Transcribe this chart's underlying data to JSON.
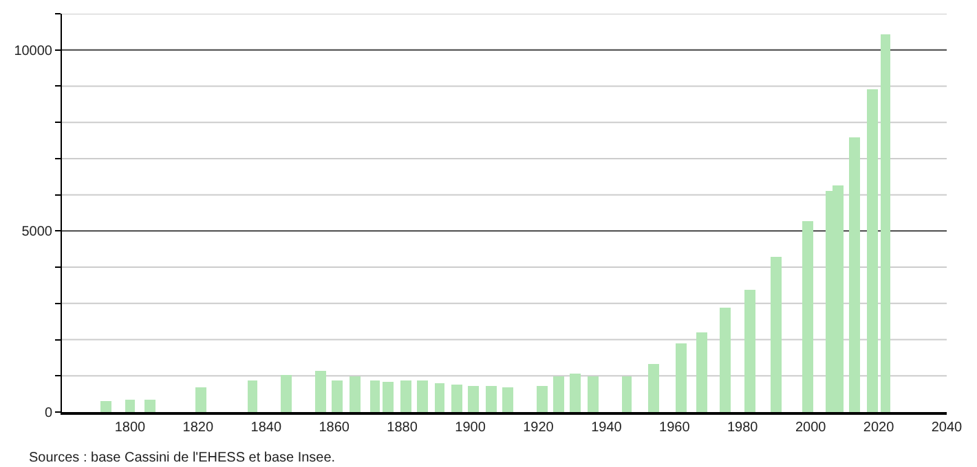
{
  "chart_data": {
    "type": "bar",
    "x": [
      1793,
      1800,
      1806,
      1821,
      1836,
      1846,
      1856,
      1861,
      1866,
      1872,
      1876,
      1881,
      1886,
      1891,
      1896,
      1901,
      1906,
      1911,
      1921,
      1926,
      1931,
      1936,
      1946,
      1954,
      1962,
      1968,
      1975,
      1982,
      1990,
      1999,
      2006,
      2008,
      2013,
      2018,
      2022
    ],
    "values": [
      320,
      340,
      340,
      700,
      890,
      1040,
      1140,
      890,
      990,
      890,
      850,
      890,
      890,
      800,
      760,
      720,
      720,
      670,
      720,
      980,
      1080,
      980,
      980,
      1330,
      1900,
      2210,
      2890,
      3380,
      4300,
      5290,
      6120,
      6270,
      7570,
      8900,
      10420
    ],
    "color": "#b3e6b5",
    "xlim": [
      1780,
      2040
    ],
    "xticks": [
      1800,
      1820,
      1840,
      1860,
      1880,
      1900,
      1920,
      1940,
      1960,
      1980,
      2000,
      2020,
      2040
    ],
    "ylim": [
      0,
      11000
    ],
    "yticks": [
      0,
      {
        "value": 1000,
        "label": null
      },
      {
        "value": 2000,
        "label": null
      },
      {
        "value": 3000,
        "label": null
      },
      {
        "value": 4000,
        "label": null
      },
      5000,
      {
        "value": 6000,
        "label": null
      },
      {
        "value": 7000,
        "label": null
      },
      {
        "value": 8000,
        "label": null
      },
      {
        "value": 9000,
        "label": null
      },
      10000,
      {
        "value": 11000,
        "label": null
      }
    ],
    "grid": "y",
    "annotations": [
      "Sources : base Cassini de l'EHESS et base Insee."
    ]
  }
}
